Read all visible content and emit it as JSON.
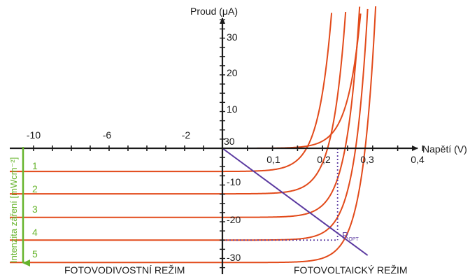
{
  "chart_data": {
    "type": "line",
    "x_axis": {
      "label": "Napětí (V)",
      "tick_labels_left": [
        "-10",
        "-6",
        "-2"
      ],
      "tick_labels_right": [
        "0,1",
        "0,2",
        "0,3",
        "0,4"
      ]
    },
    "y_axis": {
      "label": "Proud (μA)",
      "tick_labels_positive": [
        "30",
        "20",
        "10"
      ],
      "tick_labels_negative": [
        "-10",
        "-20",
        "-30"
      ],
      "origin_label": "30",
      "ylim": [
        -33,
        37
      ]
    },
    "intensity_axis_label": "Intenzita záření [mWcm⁻²]",
    "region_labels": {
      "left": "FOTOVODIVOSTNÍ REŽIM",
      "right": "FOTOVOLTAICKÝ REŽIM"
    },
    "series": [
      {
        "name": "1",
        "photocurrent": -6.3,
        "voc": 0.168
      },
      {
        "name": "2",
        "photocurrent": -12.4,
        "voc": 0.21
      },
      {
        "name": "3",
        "photocurrent": -18.8,
        "voc": 0.245
      },
      {
        "name": "4",
        "photocurrent": -25,
        "voc": 0.266
      },
      {
        "name": "5",
        "photocurrent": -31.1,
        "voc": 0.285
      }
    ],
    "dark_curve": {
      "photocurrent": 0,
      "voc": 0
    },
    "load_line": {
      "from": [
        0,
        0
      ],
      "to": [
        0.29,
        -28
      ],
      "color": "#5b3aa0"
    },
    "operating_point": {
      "label": "R",
      "subscript": "OPT",
      "voltage": 0.23,
      "current": -25
    },
    "colors": {
      "curves": "#e24a1a",
      "load_line": "#5b3aa0",
      "intensity": "#66b42c",
      "axes": "#1a1a1a"
    }
  }
}
